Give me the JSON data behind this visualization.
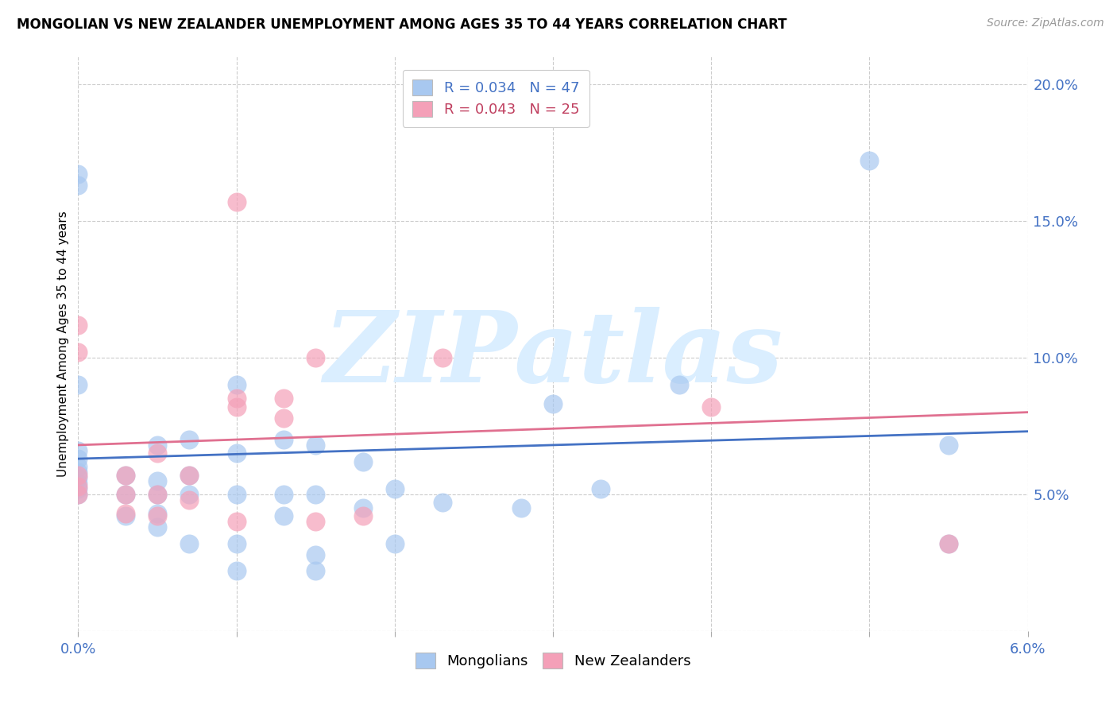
{
  "title": "MONGOLIAN VS NEW ZEALANDER UNEMPLOYMENT AMONG AGES 35 TO 44 YEARS CORRELATION CHART",
  "source": "Source: ZipAtlas.com",
  "ylabel_label": "Unemployment Among Ages 35 to 44 years",
  "xlim": [
    0.0,
    0.06
  ],
  "ylim": [
    0.0,
    0.21
  ],
  "xticks": [
    0.0,
    0.01,
    0.02,
    0.03,
    0.04,
    0.05,
    0.06
  ],
  "xtick_labels": [
    "0.0%",
    "",
    "",
    "",
    "",
    "",
    "6.0%"
  ],
  "yticks": [
    0.0,
    0.05,
    0.1,
    0.15,
    0.2
  ],
  "ytick_labels_right": [
    "",
    "5.0%",
    "10.0%",
    "15.0%",
    "20.0%"
  ],
  "mongolian_color": "#a8c8f0",
  "nz_color": "#f4a0b8",
  "mongolian_R": "0.034",
  "mongolian_N": "47",
  "nz_R": "0.043",
  "nz_N": "25",
  "mongolian_line_color": "#4472c4",
  "nz_line_color": "#e07090",
  "legend_text_mongolian_color": "#4472c4",
  "legend_text_nz_color": "#c04060",
  "watermark_text": "ZIPatlas",
  "watermark_color": "#daeeff",
  "mongolian_x": [
    0.0,
    0.0,
    0.0,
    0.0,
    0.0,
    0.0,
    0.0,
    0.0,
    0.0,
    0.0,
    0.0,
    0.003,
    0.003,
    0.003,
    0.005,
    0.005,
    0.005,
    0.005,
    0.005,
    0.007,
    0.007,
    0.007,
    0.007,
    0.01,
    0.01,
    0.01,
    0.01,
    0.01,
    0.013,
    0.013,
    0.013,
    0.015,
    0.015,
    0.015,
    0.015,
    0.018,
    0.018,
    0.02,
    0.02,
    0.023,
    0.028,
    0.033,
    0.038,
    0.05,
    0.055,
    0.055,
    0.03
  ],
  "mongolian_y": [
    0.05,
    0.052,
    0.054,
    0.056,
    0.058,
    0.06,
    0.063,
    0.066,
    0.09,
    0.163,
    0.167,
    0.042,
    0.05,
    0.057,
    0.038,
    0.043,
    0.05,
    0.055,
    0.068,
    0.032,
    0.05,
    0.057,
    0.07,
    0.022,
    0.032,
    0.05,
    0.065,
    0.09,
    0.042,
    0.05,
    0.07,
    0.022,
    0.028,
    0.05,
    0.068,
    0.045,
    0.062,
    0.032,
    0.052,
    0.047,
    0.045,
    0.052,
    0.09,
    0.172,
    0.032,
    0.068,
    0.083
  ],
  "nz_x": [
    0.0,
    0.0,
    0.0,
    0.0,
    0.0,
    0.003,
    0.003,
    0.003,
    0.005,
    0.005,
    0.005,
    0.007,
    0.007,
    0.01,
    0.01,
    0.01,
    0.01,
    0.013,
    0.013,
    0.015,
    0.015,
    0.018,
    0.023,
    0.04,
    0.055
  ],
  "nz_y": [
    0.05,
    0.053,
    0.057,
    0.102,
    0.112,
    0.043,
    0.05,
    0.057,
    0.042,
    0.05,
    0.065,
    0.048,
    0.057,
    0.04,
    0.082,
    0.085,
    0.157,
    0.078,
    0.085,
    0.04,
    0.1,
    0.042,
    0.1,
    0.082,
    0.032
  ]
}
